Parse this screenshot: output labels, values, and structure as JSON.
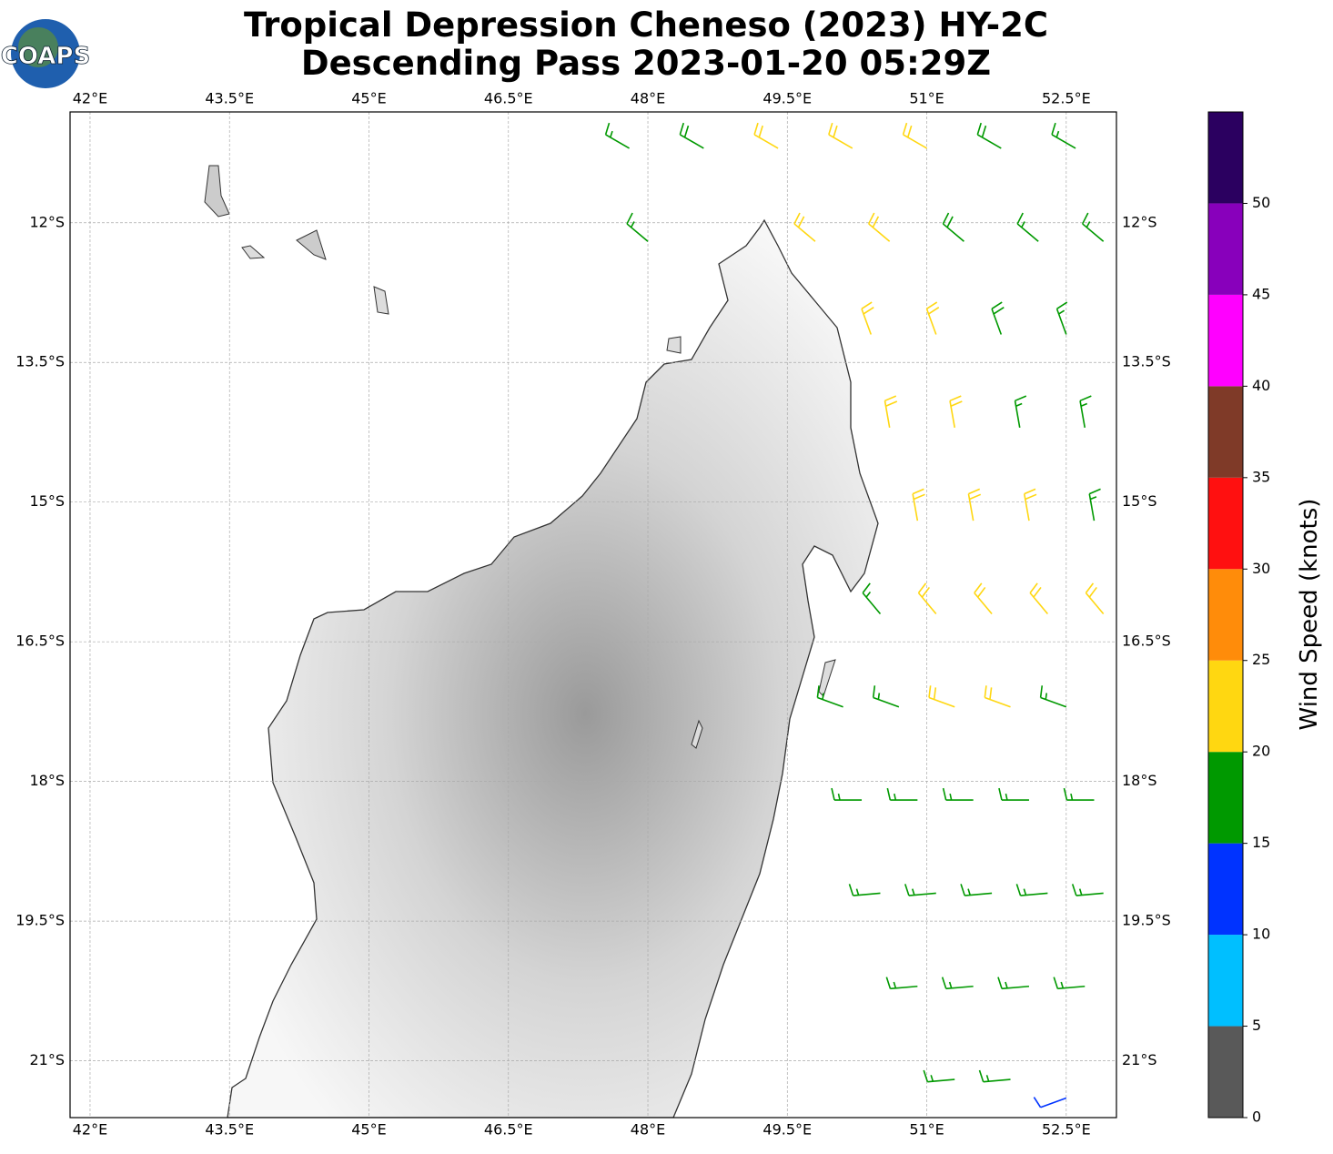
{
  "chart_data": {
    "type": "wind-barbs",
    "title": [
      "Tropical Depression Cheneso (2023) HY-2C",
      "Descending Pass 2023-01-20 05:29Z"
    ],
    "logo": "COAPS",
    "xlim": [
      41.785,
      53.04
    ],
    "ylim": [
      -21.61,
      -10.81
    ],
    "xticks": [
      {
        "value": 42,
        "label": "42°E"
      },
      {
        "value": 43.5,
        "label": "43.5°E"
      },
      {
        "value": 45,
        "label": "45°E"
      },
      {
        "value": 46.5,
        "label": "46.5°E"
      },
      {
        "value": 48,
        "label": "48°E"
      },
      {
        "value": 49.5,
        "label": "49.5°E"
      },
      {
        "value": 51,
        "label": "51°E"
      },
      {
        "value": 52.5,
        "label": "52.5°E"
      }
    ],
    "yticks": [
      {
        "value": -12,
        "label": "12°S"
      },
      {
        "value": -13.5,
        "label": "13.5°S"
      },
      {
        "value": -15,
        "label": "15°S"
      },
      {
        "value": -16.5,
        "label": "16.5°S"
      },
      {
        "value": -18,
        "label": "18°S"
      },
      {
        "value": -19.5,
        "label": "19.5°S"
      },
      {
        "value": -21,
        "label": "21°S"
      }
    ],
    "grid": true,
    "colorbar": {
      "label": "Wind Speed (knots)",
      "lim": [
        0,
        55
      ],
      "ticks": [
        0,
        5,
        10,
        15,
        20,
        25,
        30,
        35,
        40,
        45,
        50
      ],
      "colors": [
        "#595959",
        "#00bfff",
        "#0033ff",
        "#009900",
        "#ffd711",
        "#ff8c0a",
        "#ff1010",
        "#7f3a28",
        "#ff00ff",
        "#8800bb",
        "#2b0060"
      ]
    },
    "barbs": [
      {
        "lon": 47.8,
        "lat": -11.2,
        "speed": 17,
        "dir": 300
      },
      {
        "lon": 48.6,
        "lat": -11.2,
        "speed": 18,
        "dir": 300
      },
      {
        "lon": 49.4,
        "lat": -11.2,
        "speed": 22,
        "dir": 300
      },
      {
        "lon": 50.2,
        "lat": -11.2,
        "speed": 22,
        "dir": 300
      },
      {
        "lon": 51,
        "lat": -11.2,
        "speed": 21,
        "dir": 300
      },
      {
        "lon": 51.8,
        "lat": -11.2,
        "speed": 18,
        "dir": 300
      },
      {
        "lon": 52.6,
        "lat": -11.2,
        "speed": 17,
        "dir": 300
      },
      {
        "lon": 48,
        "lat": -12.2,
        "speed": 17,
        "dir": 310
      },
      {
        "lon": 49.8,
        "lat": -12.2,
        "speed": 22,
        "dir": 310
      },
      {
        "lon": 50.6,
        "lat": -12.2,
        "speed": 22,
        "dir": 310
      },
      {
        "lon": 51.4,
        "lat": -12.2,
        "speed": 18,
        "dir": 310
      },
      {
        "lon": 52.2,
        "lat": -12.2,
        "speed": 17,
        "dir": 310
      },
      {
        "lon": 52.9,
        "lat": -12.2,
        "speed": 17,
        "dir": 310
      },
      {
        "lon": 50.4,
        "lat": -13.2,
        "speed": 22,
        "dir": 340
      },
      {
        "lon": 51.1,
        "lat": -13.2,
        "speed": 22,
        "dir": 340
      },
      {
        "lon": 51.8,
        "lat": -13.2,
        "speed": 18,
        "dir": 340
      },
      {
        "lon": 52.5,
        "lat": -13.2,
        "speed": 17,
        "dir": 340
      },
      {
        "lon": 50.6,
        "lat": -14.2,
        "speed": 22,
        "dir": 350
      },
      {
        "lon": 51.3,
        "lat": -14.2,
        "speed": 22,
        "dir": 350
      },
      {
        "lon": 52,
        "lat": -14.2,
        "speed": 17,
        "dir": 350
      },
      {
        "lon": 52.7,
        "lat": -14.2,
        "speed": 17,
        "dir": 350
      },
      {
        "lon": 50.9,
        "lat": -15.2,
        "speed": 22,
        "dir": 350
      },
      {
        "lon": 51.5,
        "lat": -15.2,
        "speed": 22,
        "dir": 350
      },
      {
        "lon": 52.1,
        "lat": -15.2,
        "speed": 22,
        "dir": 350
      },
      {
        "lon": 52.8,
        "lat": -15.2,
        "speed": 17,
        "dir": 350
      },
      {
        "lon": 50.5,
        "lat": -16.2,
        "speed": 17,
        "dir": 320
      },
      {
        "lon": 51.1,
        "lat": -16.2,
        "speed": 22,
        "dir": 320
      },
      {
        "lon": 51.7,
        "lat": -16.2,
        "speed": 22,
        "dir": 320
      },
      {
        "lon": 52.3,
        "lat": -16.2,
        "speed": 22,
        "dir": 320
      },
      {
        "lon": 52.9,
        "lat": -16.2,
        "speed": 22,
        "dir": 320
      },
      {
        "lon": 50.1,
        "lat": -17.2,
        "speed": 17,
        "dir": 290
      },
      {
        "lon": 50.7,
        "lat": -17.2,
        "speed": 17,
        "dir": 290
      },
      {
        "lon": 51.3,
        "lat": -17.2,
        "speed": 22,
        "dir": 290
      },
      {
        "lon": 51.9,
        "lat": -17.2,
        "speed": 22,
        "dir": 290
      },
      {
        "lon": 52.5,
        "lat": -17.2,
        "speed": 17,
        "dir": 290
      },
      {
        "lon": 50.3,
        "lat": -18.2,
        "speed": 17,
        "dir": 270
      },
      {
        "lon": 50.9,
        "lat": -18.2,
        "speed": 17,
        "dir": 270
      },
      {
        "lon": 51.5,
        "lat": -18.2,
        "speed": 17,
        "dir": 270
      },
      {
        "lon": 52.1,
        "lat": -18.2,
        "speed": 17,
        "dir": 270
      },
      {
        "lon": 52.8,
        "lat": -18.2,
        "speed": 17,
        "dir": 270
      },
      {
        "lon": 50.5,
        "lat": -19.2,
        "speed": 17,
        "dir": 265
      },
      {
        "lon": 51.1,
        "lat": -19.2,
        "speed": 17,
        "dir": 265
      },
      {
        "lon": 51.7,
        "lat": -19.2,
        "speed": 17,
        "dir": 265
      },
      {
        "lon": 52.3,
        "lat": -19.2,
        "speed": 17,
        "dir": 265
      },
      {
        "lon": 52.9,
        "lat": -19.2,
        "speed": 17,
        "dir": 265
      },
      {
        "lon": 50.9,
        "lat": -20.2,
        "speed": 17,
        "dir": 265
      },
      {
        "lon": 51.5,
        "lat": -20.2,
        "speed": 17,
        "dir": 265
      },
      {
        "lon": 52.1,
        "lat": -20.2,
        "speed": 17,
        "dir": 265
      },
      {
        "lon": 52.7,
        "lat": -20.2,
        "speed": 17,
        "dir": 265
      },
      {
        "lon": 51.3,
        "lat": -21.2,
        "speed": 17,
        "dir": 265
      },
      {
        "lon": 51.9,
        "lat": -21.2,
        "speed": 17,
        "dir": 265
      },
      {
        "lon": 52.5,
        "lat": -21.4,
        "speed": 12,
        "dir": 250
      }
    ]
  }
}
